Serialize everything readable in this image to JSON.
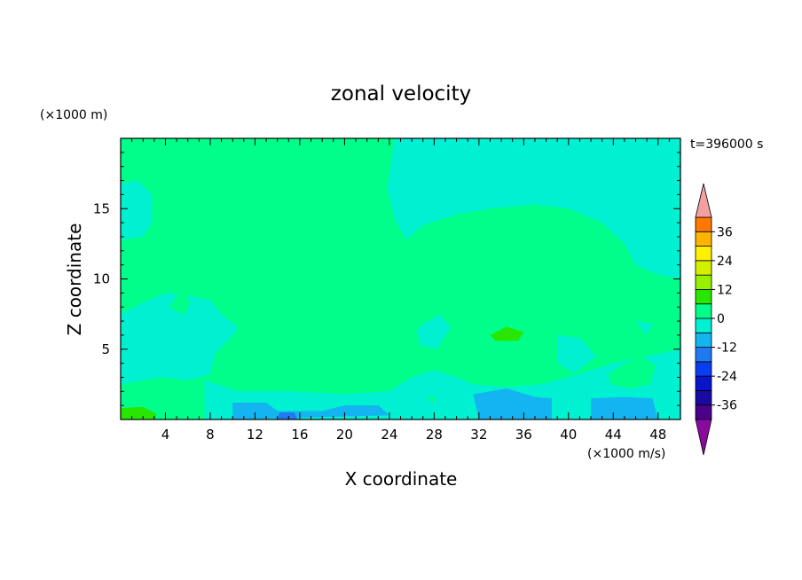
{
  "chart_data": {
    "type": "heatmap",
    "title": "zonal velocity",
    "xlabel": "X coordinate",
    "ylabel": "Z coordinate",
    "x_unit": "(×1000 m/s)",
    "y_unit": "(×1000 m)",
    "time_label": "t=396000 s",
    "xlim": [
      0,
      50
    ],
    "ylim": [
      0,
      20
    ],
    "x_ticks": [
      4,
      8,
      12,
      16,
      20,
      24,
      28,
      32,
      36,
      40,
      44,
      48
    ],
    "y_ticks": [
      5,
      10,
      15
    ],
    "colorbar": {
      "levels": [
        -42,
        -36,
        -30,
        -24,
        -18,
        -12,
        -6,
        0,
        6,
        12,
        18,
        24,
        30,
        36,
        42
      ],
      "labels": [
        -36,
        -24,
        -12,
        0,
        12,
        24,
        36
      ],
      "colors": [
        "#4a008a",
        "#1a0aa0",
        "#0a14c8",
        "#0a3cf0",
        "#1e7af0",
        "#14b4f0",
        "#00f0d2",
        "#00ff8a",
        "#28e600",
        "#96f000",
        "#d2f000",
        "#fff000",
        "#ffb400",
        "#ff7800",
        "#ff3c00",
        "#ff0000"
      ],
      "over_color": "#f4a0a0",
      "under_color": "#8a0aa0"
    },
    "regions": [
      {
        "value": 0.5,
        "poly": [
          [
            0,
            0
          ],
          [
            50,
            0
          ],
          [
            50,
            20
          ],
          [
            0,
            20
          ]
        ]
      },
      {
        "value": -3,
        "poly": [
          [
            24.5,
            20
          ],
          [
            50,
            20
          ],
          [
            50,
            10
          ],
          [
            48,
            10.3
          ],
          [
            46,
            11
          ],
          [
            45,
            12.5
          ],
          [
            43,
            14
          ],
          [
            40,
            15
          ],
          [
            37,
            15.3
          ],
          [
            33,
            15
          ],
          [
            30,
            14.6
          ],
          [
            27,
            13.8
          ],
          [
            25.5,
            12.8
          ],
          [
            24.5,
            14.2
          ],
          [
            23.8,
            16.5
          ]
        ]
      },
      {
        "value": -3,
        "poly": [
          [
            0,
            16.8
          ],
          [
            1.5,
            17
          ],
          [
            2.8,
            16
          ],
          [
            2.8,
            14
          ],
          [
            2,
            13
          ],
          [
            0,
            12.8
          ]
        ]
      },
      {
        "value": -3,
        "poly": [
          [
            0,
            7.5
          ],
          [
            2,
            8.3
          ],
          [
            4,
            9
          ],
          [
            6,
            8.8
          ],
          [
            8,
            8.5
          ],
          [
            9,
            7.5
          ],
          [
            10.5,
            6.5
          ],
          [
            9.5,
            5.5
          ],
          [
            8.5,
            4.8
          ],
          [
            8,
            3.2
          ],
          [
            6,
            2.8
          ],
          [
            3.5,
            3
          ],
          [
            0,
            2.5
          ]
        ]
      },
      {
        "value": -3,
        "poly": [
          [
            7.5,
            2.8
          ],
          [
            10.5,
            2
          ],
          [
            15,
            2
          ],
          [
            20,
            1.8
          ],
          [
            24,
            2
          ],
          [
            26,
            3
          ],
          [
            28,
            3.5
          ],
          [
            30,
            3
          ],
          [
            31.5,
            2.5
          ],
          [
            34.5,
            2.3
          ],
          [
            37.5,
            2.5
          ],
          [
            40,
            3
          ],
          [
            44,
            4
          ],
          [
            47,
            4.5
          ],
          [
            50,
            5
          ],
          [
            50,
            0
          ],
          [
            7.5,
            0
          ]
        ]
      },
      {
        "value": -3,
        "poly": [
          [
            26.5,
            6.5
          ],
          [
            28.5,
            7.5
          ],
          [
            29.5,
            6.5
          ],
          [
            28.2,
            5
          ],
          [
            26.7,
            5.3
          ]
        ]
      },
      {
        "value": -3,
        "poly": [
          [
            39,
            6
          ],
          [
            41,
            5.8
          ],
          [
            42.5,
            4.5
          ],
          [
            40.5,
            3.3
          ],
          [
            39,
            4
          ]
        ]
      },
      {
        "value": -3,
        "poly": [
          [
            46,
            7
          ],
          [
            47.5,
            6.8
          ],
          [
            47,
            6
          ]
        ]
      },
      {
        "value": -7,
        "poly": [
          [
            10,
            1.2
          ],
          [
            13,
            1.2
          ],
          [
            14,
            0.6
          ],
          [
            18,
            0.6
          ],
          [
            20,
            1
          ],
          [
            23,
            1
          ],
          [
            24,
            0.3
          ],
          [
            10,
            0
          ]
        ]
      },
      {
        "value": -7,
        "poly": [
          [
            31.5,
            1.8
          ],
          [
            34.5,
            2.2
          ],
          [
            37,
            1.6
          ],
          [
            38.5,
            1.5
          ],
          [
            38.5,
            0
          ],
          [
            32,
            0
          ]
        ]
      },
      {
        "value": -7,
        "poly": [
          [
            42,
            1.5
          ],
          [
            45,
            1.6
          ],
          [
            47.5,
            1.5
          ],
          [
            48,
            0
          ],
          [
            42,
            0
          ]
        ]
      },
      {
        "value": -14,
        "poly": [
          [
            14.2,
            0.5
          ],
          [
            15.5,
            0.5
          ],
          [
            15.8,
            0
          ],
          [
            14,
            0
          ]
        ]
      },
      {
        "value": 3,
        "poly": [
          [
            8.5,
            19.5
          ],
          [
            11,
            19.7
          ],
          [
            12.5,
            20
          ],
          [
            16.3,
            19.5
          ],
          [
            17,
            18.5
          ],
          [
            18,
            16.5
          ],
          [
            19.3,
            14
          ],
          [
            20.5,
            12
          ],
          [
            20.5,
            10.5
          ],
          [
            15.5,
            10
          ],
          [
            14.5,
            9.5
          ],
          [
            11,
            9.8
          ],
          [
            8.5,
            12
          ],
          [
            8,
            13.8
          ],
          [
            8.2,
            17
          ]
        ]
      },
      {
        "value": 3,
        "poly": [
          [
            11,
            7.2
          ],
          [
            12.5,
            8.3
          ],
          [
            14,
            9.5
          ],
          [
            15,
            8.8
          ],
          [
            15,
            6.8
          ],
          [
            13,
            6.7
          ]
        ]
      },
      {
        "value": 3,
        "poly": [
          [
            4.3,
            8
          ],
          [
            5.5,
            9.3
          ],
          [
            6.2,
            8.3
          ],
          [
            5.7,
            7.4
          ]
        ]
      },
      {
        "value": 3,
        "poly": [
          [
            31.5,
            9.5
          ],
          [
            33,
            10
          ],
          [
            35,
            9.8
          ],
          [
            36.5,
            8.5
          ],
          [
            35,
            7.8
          ],
          [
            32.5,
            8
          ]
        ]
      },
      {
        "value": 3,
        "poly": [
          [
            30.5,
            5.5
          ],
          [
            31.5,
            7
          ],
          [
            34,
            7.8
          ],
          [
            36,
            7
          ],
          [
            37,
            5.5
          ],
          [
            36.5,
            4
          ],
          [
            34,
            3.5
          ],
          [
            31.8,
            4
          ]
        ]
      },
      {
        "value": 3,
        "poly": [
          [
            43.5,
            3.2
          ],
          [
            45,
            4
          ],
          [
            46.5,
            4.5
          ],
          [
            47.8,
            3.8
          ],
          [
            47.3,
            2.5
          ],
          [
            45.5,
            2.2
          ],
          [
            43.8,
            2.5
          ]
        ]
      },
      {
        "value": 3,
        "poly": [
          [
            0,
            1.8
          ],
          [
            3,
            1.5
          ],
          [
            5,
            1.4
          ],
          [
            6.5,
            1.8
          ],
          [
            7.5,
            0.8
          ],
          [
            7.5,
            0
          ],
          [
            0,
            0
          ]
        ]
      },
      {
        "value": 3,
        "poly": [
          [
            23.5,
            6
          ],
          [
            24.5,
            6.2
          ],
          [
            24.5,
            5.5
          ]
        ]
      },
      {
        "value": 3,
        "poly": [
          [
            27.3,
            1.5
          ],
          [
            28.2,
            1.6
          ],
          [
            28,
            1.2
          ]
        ]
      },
      {
        "value": 8,
        "poly": [
          [
            33,
            6
          ],
          [
            34.5,
            6.6
          ],
          [
            36,
            6.2
          ],
          [
            35.5,
            5.6
          ],
          [
            33.5,
            5.6
          ]
        ]
      },
      {
        "value": 8,
        "poly": [
          [
            0,
            0.8
          ],
          [
            2,
            0.9
          ],
          [
            3.2,
            0.4
          ],
          [
            3,
            0
          ],
          [
            0,
            0
          ]
        ]
      }
    ]
  }
}
